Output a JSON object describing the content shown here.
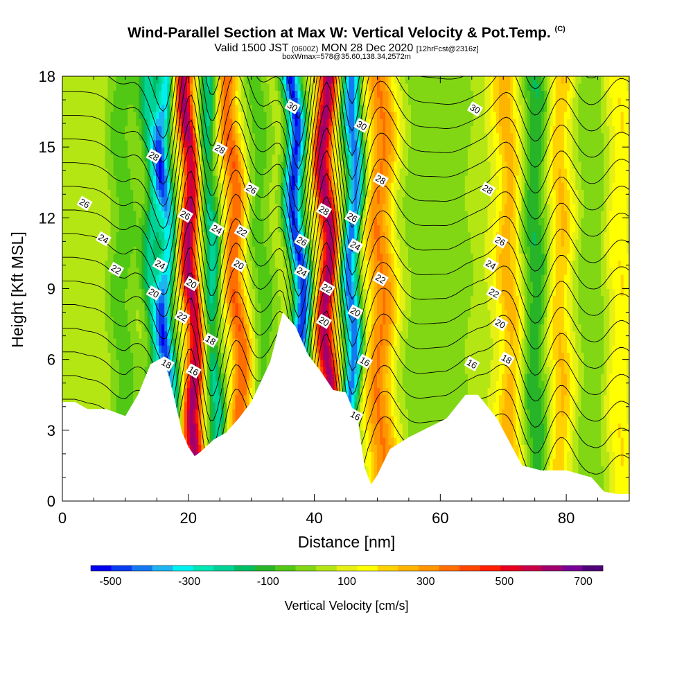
{
  "title": {
    "main": "Wind-Parallel Section at Max W: Vertical Velocity & Pot.Temp.",
    "copyright": "(C)",
    "valid_prefix": "Valid 1500 JST",
    "valid_utc": "(0600Z)",
    "valid_date": "MON 28 Dec 2020",
    "forecast": "[12hrFcst@2316z]",
    "box_info": "boxWmax=578@35.60,138.34,2572m"
  },
  "chart_data": {
    "type": "heatmap",
    "xlabel": "Distance [nm]",
    "ylabel": "Height [Kft MSL]",
    "xlim": [
      0,
      90
    ],
    "ylim": [
      0,
      18
    ],
    "x_ticks": [
      0,
      20,
      40,
      60,
      80
    ],
    "y_ticks": [
      0,
      3,
      6,
      9,
      12,
      15,
      18
    ],
    "colorbar": {
      "label": "Vertical Velocity [cm/s]",
      "tick_labels": [
        "-500",
        "-300",
        "-100",
        "100",
        "300",
        "500",
        "700"
      ],
      "tick_values": [
        -500,
        -300,
        -100,
        100,
        300,
        500,
        700
      ],
      "range": [
        -550,
        750
      ],
      "colors": [
        "#0000f0",
        "#0a3cf0",
        "#1478f0",
        "#1eb4f0",
        "#00f0f0",
        "#00e6b4",
        "#00d296",
        "#00be64",
        "#28b428",
        "#50c814",
        "#82d714",
        "#b4e614",
        "#e6f014",
        "#ffff00",
        "#ffd200",
        "#ffb400",
        "#ff9600",
        "#ff6e00",
        "#ff4600",
        "#ff1e00",
        "#e6001e",
        "#c80046",
        "#a0006e",
        "#780096",
        "#500078"
      ]
    },
    "terrain": [
      [
        0,
        4.2
      ],
      [
        2,
        4.2
      ],
      [
        4,
        3.9
      ],
      [
        7,
        3.9
      ],
      [
        10,
        3.6
      ],
      [
        12,
        4.5
      ],
      [
        14,
        5.8
      ],
      [
        16,
        6.1
      ],
      [
        17,
        5.2
      ],
      [
        18,
        4.1
      ],
      [
        19,
        2.9
      ],
      [
        20,
        2.3
      ],
      [
        21,
        1.9
      ],
      [
        22,
        2.1
      ],
      [
        24,
        2.6
      ],
      [
        26,
        2.9
      ],
      [
        28,
        3.5
      ],
      [
        30,
        4.2
      ],
      [
        33,
        5.9
      ],
      [
        35,
        8.0
      ],
      [
        37,
        7.4
      ],
      [
        39,
        6.2
      ],
      [
        41,
        5.5
      ],
      [
        42,
        5.1
      ],
      [
        43,
        4.7
      ],
      [
        45,
        4.6
      ],
      [
        47,
        3.3
      ],
      [
        48,
        1.4
      ],
      [
        49,
        0.7
      ],
      [
        50,
        1.1
      ],
      [
        52,
        2.2
      ],
      [
        55,
        2.7
      ],
      [
        58,
        3.1
      ],
      [
        61,
        3.5
      ],
      [
        64,
        4.5
      ],
      [
        66,
        4.5
      ],
      [
        69,
        3.5
      ],
      [
        71,
        2.5
      ],
      [
        73,
        1.5
      ],
      [
        76,
        1.3
      ],
      [
        80,
        1.3
      ],
      [
        84,
        1.0
      ],
      [
        86,
        0.4
      ],
      [
        88,
        0.3
      ],
      [
        90,
        0.3
      ]
    ],
    "velocity_bands": [
      {
        "x": 9.5,
        "lean": 0.0,
        "amp": -120,
        "width": 2.2
      },
      {
        "x": 14.5,
        "lean": -0.05,
        "amp": -250,
        "width": 1.7
      },
      {
        "x": 16.5,
        "lean": -0.06,
        "amp": -380,
        "width": 1.4
      },
      {
        "x": 20.5,
        "lean": -0.1,
        "amp": 560,
        "width": 1.6
      },
      {
        "x": 23.5,
        "lean": -0.1,
        "amp": -280,
        "width": 1.6
      },
      {
        "x": 27.5,
        "lean": -0.15,
        "amp": 330,
        "width": 1.8
      },
      {
        "x": 31.5,
        "lean": -0.12,
        "amp": -120,
        "width": 2.0
      },
      {
        "x": 37.5,
        "lean": -0.15,
        "amp": -560,
        "width": 1.5
      },
      {
        "x": 42.0,
        "lean": -0.05,
        "amp": 560,
        "width": 1.6
      },
      {
        "x": 46.0,
        "lean": 0.05,
        "amp": -500,
        "width": 1.5
      },
      {
        "x": 50.5,
        "lean": 0.0,
        "amp": 280,
        "width": 2.4
      },
      {
        "x": 56.0,
        "lean": 0.0,
        "amp": -60,
        "width": 3.0
      },
      {
        "x": 62.0,
        "lean": 0.0,
        "amp": -80,
        "width": 3.0
      },
      {
        "x": 71.0,
        "lean": -0.05,
        "amp": 200,
        "width": 2.2
      },
      {
        "x": 75.0,
        "lean": 0.0,
        "amp": -200,
        "width": 2.2
      },
      {
        "x": 79.0,
        "lean": 0.0,
        "amp": 180,
        "width": 2.0
      },
      {
        "x": 84.0,
        "lean": 0.0,
        "amp": -90,
        "width": 2.5
      },
      {
        "x": 88.5,
        "lean": 0.0,
        "amp": 120,
        "width": 2.0
      }
    ],
    "velocity_base": 60,
    "theta_levels": [
      15,
      16,
      17,
      18,
      19,
      20,
      21,
      22,
      23,
      24,
      25,
      26,
      27,
      28,
      29,
      30,
      31
    ],
    "contour_labels": [
      {
        "text": "26",
        "x": 3.5,
        "y": 12.6
      },
      {
        "text": "24",
        "x": 6.5,
        "y": 11.1
      },
      {
        "text": "22",
        "x": 8.5,
        "y": 9.8
      },
      {
        "text": "28",
        "x": 14.5,
        "y": 14.6
      },
      {
        "text": "24",
        "x": 15.5,
        "y": 10.0
      },
      {
        "text": "20",
        "x": 14.5,
        "y": 8.8
      },
      {
        "text": "18",
        "x": 16.5,
        "y": 5.8
      },
      {
        "text": "26",
        "x": 19.5,
        "y": 12.1
      },
      {
        "text": "20",
        "x": 20.5,
        "y": 9.2
      },
      {
        "text": "22",
        "x": 19.0,
        "y": 7.8
      },
      {
        "text": "16",
        "x": 20.8,
        "y": 5.5
      },
      {
        "text": "28",
        "x": 25.0,
        "y": 14.9
      },
      {
        "text": "24",
        "x": 24.5,
        "y": 11.5
      },
      {
        "text": "22",
        "x": 28.5,
        "y": 11.4
      },
      {
        "text": "26",
        "x": 30.0,
        "y": 13.2
      },
      {
        "text": "20",
        "x": 28.0,
        "y": 10.0
      },
      {
        "text": "18",
        "x": 23.5,
        "y": 6.8
      },
      {
        "text": "30",
        "x": 36.5,
        "y": 16.7
      },
      {
        "text": "26",
        "x": 38.0,
        "y": 11.0
      },
      {
        "text": "24",
        "x": 38.0,
        "y": 9.7
      },
      {
        "text": "28",
        "x": 41.5,
        "y": 12.3
      },
      {
        "text": "22",
        "x": 42.0,
        "y": 9.0
      },
      {
        "text": "20",
        "x": 41.5,
        "y": 7.6
      },
      {
        "text": "26",
        "x": 46.0,
        "y": 12.0
      },
      {
        "text": "24",
        "x": 46.5,
        "y": 10.8
      },
      {
        "text": "20",
        "x": 46.5,
        "y": 8.0
      },
      {
        "text": "30",
        "x": 47.5,
        "y": 15.9
      },
      {
        "text": "28",
        "x": 50.5,
        "y": 13.6
      },
      {
        "text": "22",
        "x": 50.5,
        "y": 9.4
      },
      {
        "text": "16",
        "x": 48.0,
        "y": 5.9
      },
      {
        "text": "16",
        "x": 46.5,
        "y": 3.6
      },
      {
        "text": "30",
        "x": 65.5,
        "y": 16.6
      },
      {
        "text": "28",
        "x": 67.5,
        "y": 13.2
      },
      {
        "text": "26",
        "x": 69.5,
        "y": 11.0
      },
      {
        "text": "24",
        "x": 68.0,
        "y": 10.0
      },
      {
        "text": "22",
        "x": 68.5,
        "y": 8.8
      },
      {
        "text": "20",
        "x": 69.5,
        "y": 7.5
      },
      {
        "text": "18",
        "x": 70.5,
        "y": 6.0
      },
      {
        "text": "16",
        "x": 65.0,
        "y": 5.8
      }
    ]
  }
}
